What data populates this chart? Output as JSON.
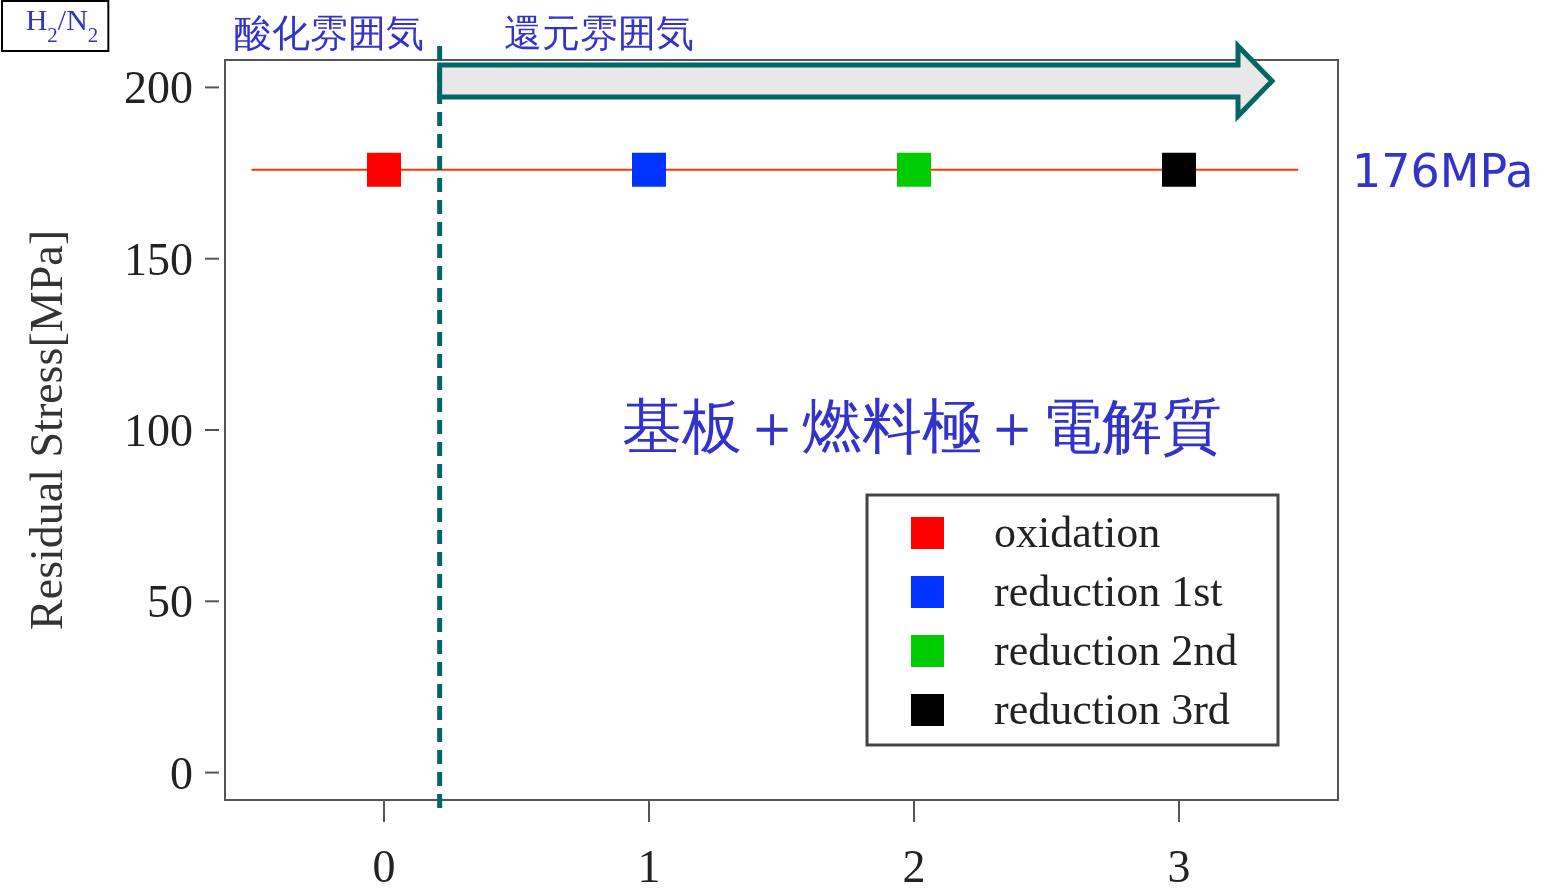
{
  "chart_data": {
    "type": "scatter",
    "ylabel": "Residual Stress[MPa]",
    "annotations": [
      "H$_{2}$/N$_{2}$",
      "酸化雰囲気",
      "還元雰囲気",
      "基板＋燃料極＋電解質"
    ],
    "series": [
      {
        "name": "oxidation",
        "color": "#ff0000",
        "x": [
          0
        ],
        "values": [
          176
        ]
      },
      {
        "name": "reduction 1st",
        "color": "#0033ff",
        "x": [
          1
        ],
        "values": [
          176
        ]
      },
      {
        "name": "reduction 2nd",
        "color": "#00cc00",
        "x": [
          2
        ],
        "values": [
          176
        ]
      },
      {
        "name": "reduction 3rd",
        "color": "#000000",
        "x": [
          3
        ],
        "values": [
          176
        ]
      }
    ],
    "xlim": [
      -0.6,
      3.6
    ],
    "xticks": [
      0,
      1,
      2,
      3
    ],
    "ylim": [
      -8,
      208
    ],
    "yticks": [
      0,
      50,
      100,
      150,
      200
    ],
    "ref_lines": [
      {
        "axis": "y",
        "value": 176,
        "label": "176MPa",
        "color": "#ff3300",
        "line_style": "solid"
      },
      {
        "axis": "x",
        "value": 0.21,
        "color": "#006666",
        "line_style": "dashed"
      }
    ],
    "grid": false,
    "legend": "bottom right",
    "marker": "square"
  }
}
